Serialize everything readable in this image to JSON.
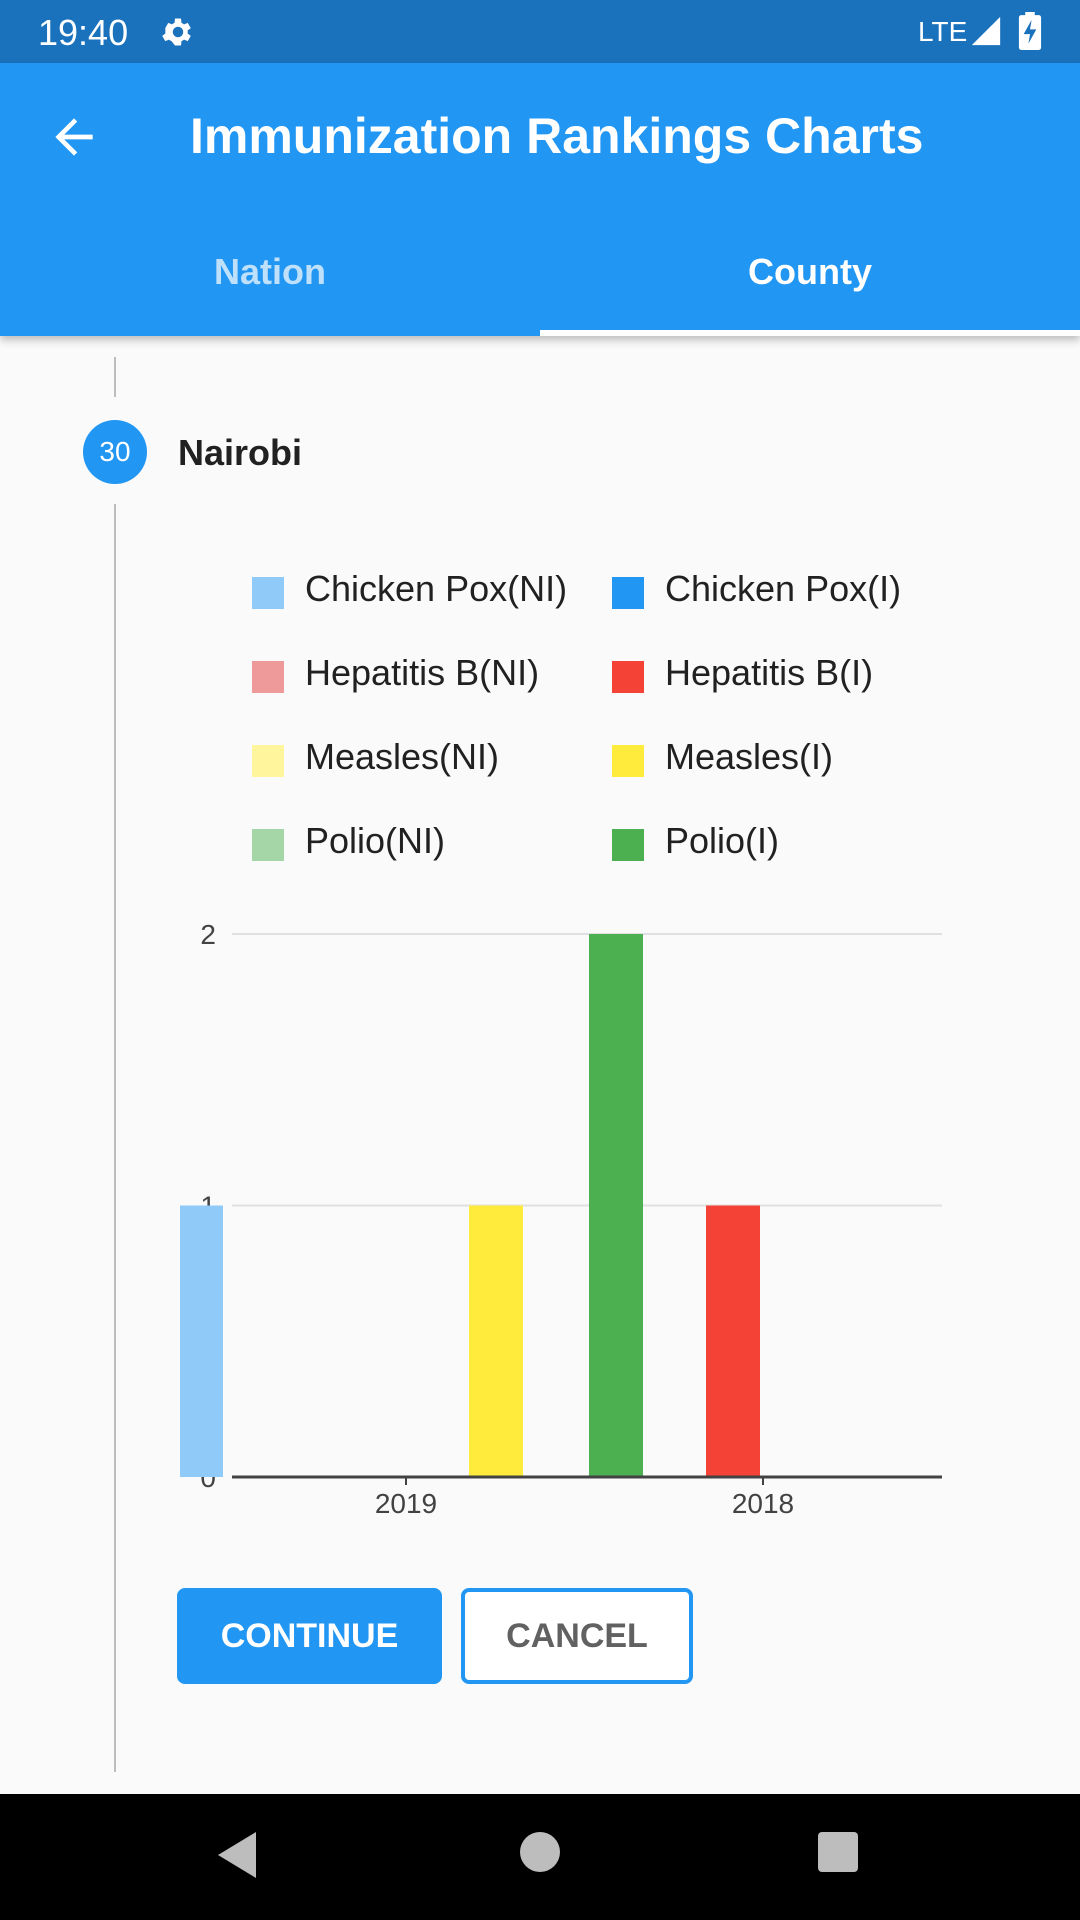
{
  "status_bar": {
    "time": "19:40",
    "network": "LTE",
    "icons": [
      "gear-icon",
      "signal-icon",
      "battery-charging-icon"
    ]
  },
  "app_bar": {
    "title": "Immunization Rankings Charts",
    "back_icon": "arrow-left-icon",
    "tabs": [
      {
        "label": "Nation",
        "selected": false
      },
      {
        "label": "County",
        "selected": true
      }
    ]
  },
  "step": {
    "number": "30",
    "title": "Nairobi"
  },
  "legend": [
    {
      "label": "Chicken Pox(NI)",
      "color": "#90caf9"
    },
    {
      "label": "Chicken Pox(I)",
      "color": "#2196f3"
    },
    {
      "label": "Hepatitis B(NI)",
      "color": "#ef9a9a"
    },
    {
      "label": "Hepatitis B(I)",
      "color": "#f44336"
    },
    {
      "label": "Measles(NI)",
      "color": "#fff59d"
    },
    {
      "label": "Measles(I)",
      "color": "#ffeb3b"
    },
    {
      "label": "Polio(NI)",
      "color": "#a5d6a7"
    },
    {
      "label": "Polio(I)",
      "color": "#4caf50"
    }
  ],
  "chart_data": {
    "type": "bar",
    "title": "",
    "xlabel": "",
    "ylabel": "",
    "categories": [
      "2019",
      "2018"
    ],
    "ylim": [
      0,
      2
    ],
    "yticks": [
      "0",
      "1",
      "2"
    ],
    "grid": true,
    "legend_placement": "top",
    "series": [
      {
        "name": "Chicken Pox(NI)",
        "color": "#90caf9",
        "values": [
          1,
          0
        ]
      },
      {
        "name": "Chicken Pox(I)",
        "color": "#2196f3",
        "values": [
          0,
          0
        ]
      },
      {
        "name": "Hepatitis B(NI)",
        "color": "#ef9a9a",
        "values": [
          0,
          0
        ]
      },
      {
        "name": "Hepatitis B(I)",
        "color": "#f44336",
        "values": [
          0,
          1
        ]
      },
      {
        "name": "Measles(NI)",
        "color": "#fff59d",
        "values": [
          0,
          0
        ]
      },
      {
        "name": "Measles(I)",
        "color": "#ffeb3b",
        "values": [
          1,
          0
        ]
      },
      {
        "name": "Polio(NI)",
        "color": "#a5d6a7",
        "values": [
          0,
          0
        ]
      },
      {
        "name": "Polio(I)",
        "color": "#4caf50",
        "values": [
          2,
          0
        ]
      }
    ]
  },
  "buttons": {
    "continue_label": "CONTINUE",
    "cancel_label": "CANCEL"
  },
  "nav_bar": {
    "icons": [
      "nav-back-icon",
      "nav-home-icon",
      "nav-recents-icon"
    ]
  }
}
